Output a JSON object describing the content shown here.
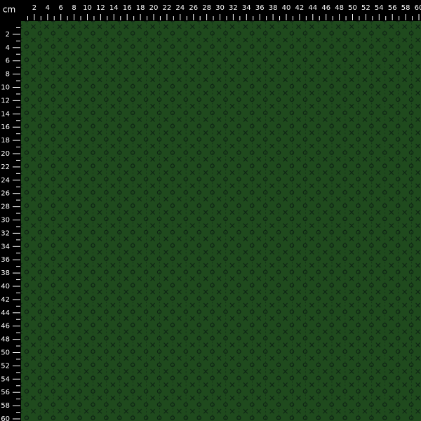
{
  "ruler": {
    "unit": "cm",
    "top_labels": [
      2,
      4,
      6,
      8,
      10,
      12,
      14,
      16,
      18,
      20,
      22,
      24,
      26,
      28,
      30,
      32,
      34,
      36,
      38,
      40,
      42,
      44,
      46,
      48,
      50,
      52,
      54,
      56,
      58,
      60
    ],
    "left_labels": [
      2,
      4,
      6,
      8,
      10,
      12,
      14,
      16,
      18,
      20,
      22,
      24,
      26,
      28,
      30,
      32,
      34,
      36,
      38,
      40,
      42,
      44,
      46,
      48,
      50,
      52,
      54,
      56,
      58,
      60
    ]
  }
}
